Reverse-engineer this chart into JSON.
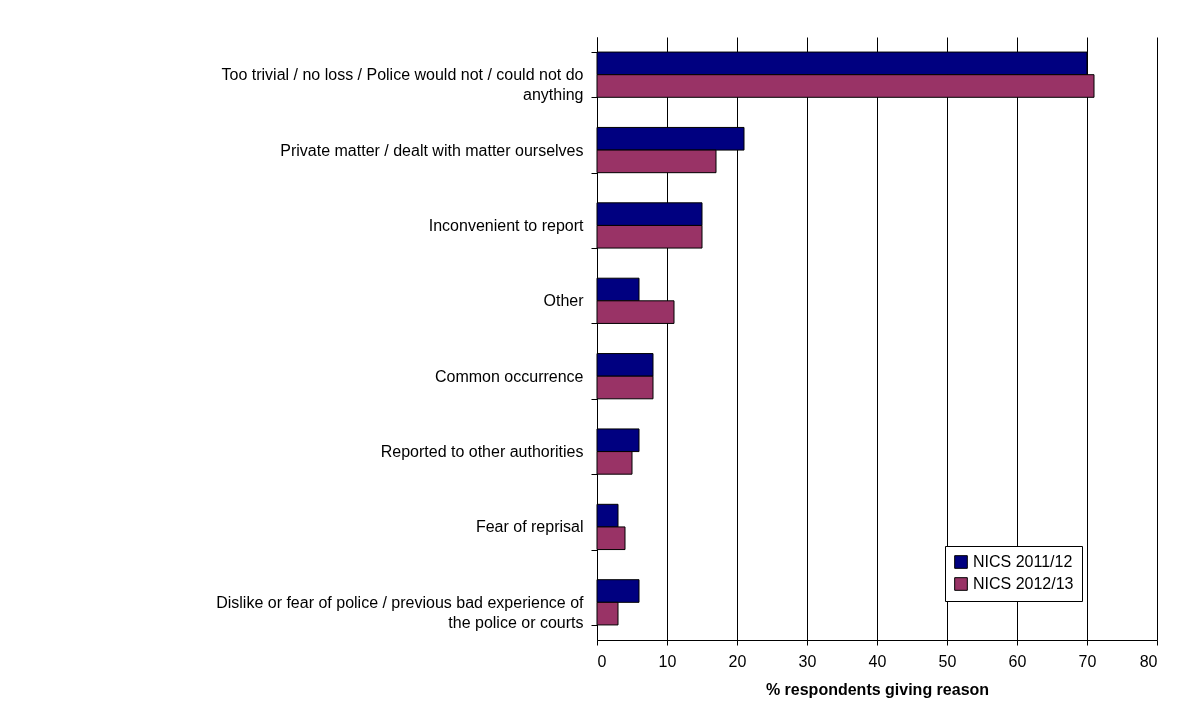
{
  "chart_data": {
    "type": "bar",
    "orientation": "horizontal",
    "xlabel": "% respondents giving reason",
    "categories": [
      "Too trivial / no loss / Police would not / could not do anything",
      "Private matter / dealt with matter ourselves",
      "Inconvenient to report",
      "Other",
      "Common occurrence",
      "Reported to other authorities",
      "Fear of reprisal",
      "Dislike or fear of police / previous bad experience of the police or courts"
    ],
    "series": [
      {
        "name": "NICS 2011/12",
        "color": "#000080",
        "values": [
          70,
          21,
          15,
          6,
          8,
          6,
          3,
          6
        ]
      },
      {
        "name": "NICS 2012/13",
        "color": "#993366",
        "values": [
          71,
          17,
          15,
          11,
          8,
          5,
          4,
          3
        ]
      }
    ],
    "xlim": [
      0,
      80
    ],
    "xticks": [
      0,
      10,
      20,
      30,
      40,
      50,
      60,
      70,
      80
    ],
    "grid": "x",
    "legend": "bottom right"
  }
}
